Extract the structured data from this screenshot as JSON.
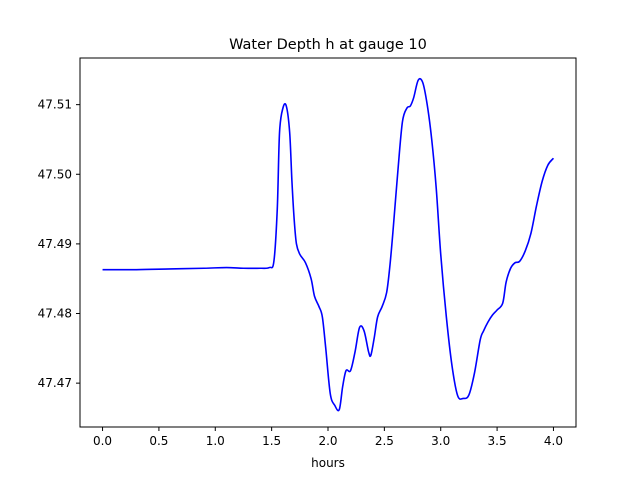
{
  "chart_data": {
    "type": "line",
    "title": "Water Depth h at gauge 10",
    "xlabel": "hours",
    "ylabel": "",
    "xlim": [
      -0.2,
      4.2
    ],
    "ylim": [
      47.4637,
      47.5167
    ],
    "xticks": [
      0.0,
      0.5,
      1.0,
      1.5,
      2.0,
      2.5,
      3.0,
      3.5,
      4.0
    ],
    "xtick_labels": [
      "0.0",
      "0.5",
      "1.0",
      "1.5",
      "2.0",
      "2.5",
      "3.0",
      "3.5",
      "4.0"
    ],
    "yticks": [
      47.47,
      47.48,
      47.49,
      47.5,
      47.51
    ],
    "ytick_labels": [
      "47.47",
      "47.48",
      "47.49",
      "47.50",
      "47.51"
    ],
    "grid": false,
    "series": [
      {
        "color": "#0000ff",
        "x": [
          0.0,
          0.3,
          0.6,
          0.9,
          1.1,
          1.25,
          1.4,
          1.48,
          1.52,
          1.55,
          1.57,
          1.6,
          1.63,
          1.66,
          1.68,
          1.7,
          1.72,
          1.75,
          1.8,
          1.85,
          1.88,
          1.92,
          1.95,
          1.98,
          2.02,
          2.06,
          2.1,
          2.13,
          2.16,
          2.2,
          2.24,
          2.28,
          2.32,
          2.36,
          2.38,
          2.41,
          2.44,
          2.48,
          2.52,
          2.55,
          2.58,
          2.62,
          2.66,
          2.7,
          2.73,
          2.76,
          2.8,
          2.84,
          2.88,
          2.92,
          2.96,
          3.0,
          3.05,
          3.1,
          3.15,
          3.2,
          3.25,
          3.3,
          3.35,
          3.38,
          3.42,
          3.46,
          3.5,
          3.55,
          3.58,
          3.62,
          3.66,
          3.7,
          3.75,
          3.8,
          3.85,
          3.9,
          3.95,
          4.0
        ],
        "y": [
          47.4863,
          47.4863,
          47.4864,
          47.4865,
          47.4866,
          47.4865,
          47.4865,
          47.4866,
          47.4875,
          47.495,
          47.506,
          47.5095,
          47.5098,
          47.506,
          47.499,
          47.4935,
          47.49,
          47.4885,
          47.4873,
          47.485,
          47.4825,
          47.481,
          47.4795,
          47.475,
          47.4685,
          47.4668,
          47.4662,
          47.4695,
          47.4718,
          47.4718,
          47.4745,
          47.478,
          47.4775,
          47.4745,
          47.474,
          47.4765,
          47.4795,
          47.481,
          47.483,
          47.487,
          47.4925,
          47.5005,
          47.5075,
          47.5095,
          47.5098,
          47.511,
          47.5135,
          47.5132,
          47.51,
          47.505,
          47.498,
          47.4885,
          47.4795,
          47.4725,
          47.4682,
          47.4678,
          47.4683,
          47.4715,
          47.4762,
          47.4775,
          47.4788,
          47.4798,
          47.4805,
          47.4815,
          47.4845,
          47.4865,
          47.4873,
          47.4875,
          47.489,
          47.4915,
          47.4955,
          47.499,
          47.5013,
          47.5023
        ]
      }
    ]
  }
}
